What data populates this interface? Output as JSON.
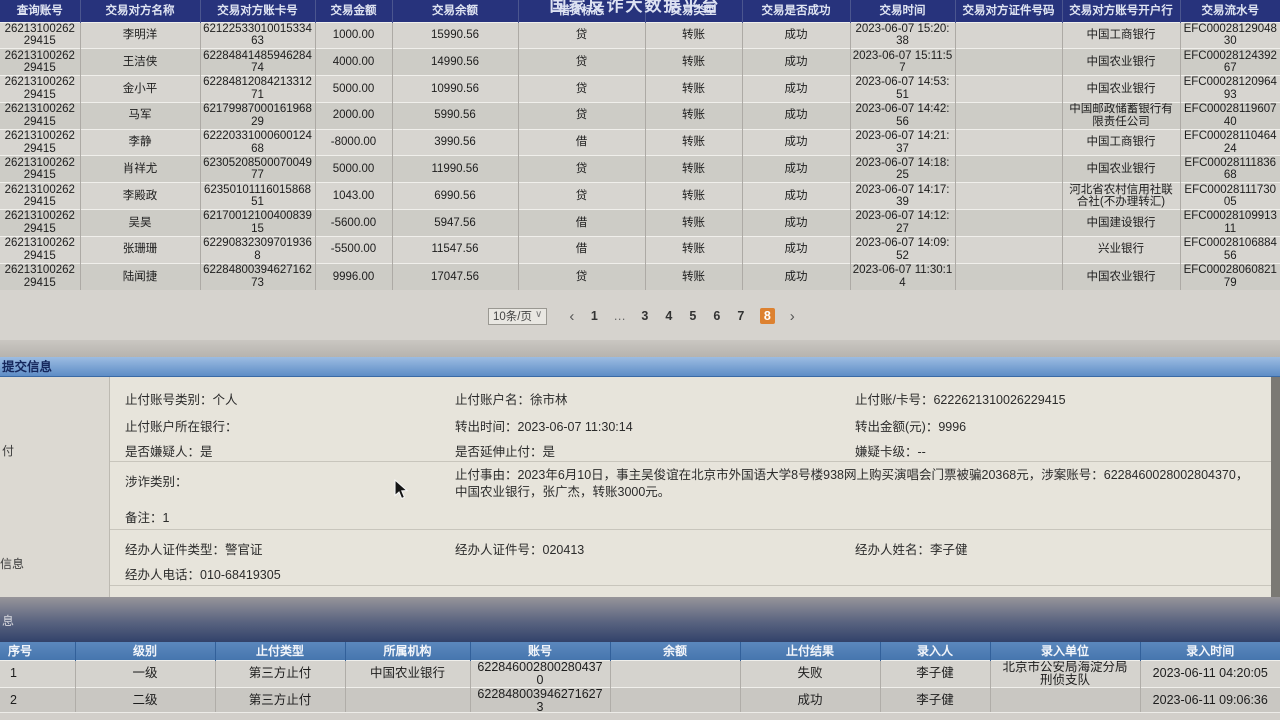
{
  "platform_title": "国家反诈大数据平台",
  "colors": {
    "header_navy": "#27337c",
    "header_blue": "#4e7db6",
    "active_page_orange": "#dd8130",
    "submit_bar_blue": "#6a9bd2"
  },
  "transactions": {
    "columns": [
      "查询账号",
      "交易对方名称",
      "交易对方账卡号",
      "交易金额",
      "交易余额",
      "借贷标志",
      "交易类型",
      "交易是否成功",
      "交易时间",
      "交易对方证件号码",
      "交易对方账号开户行",
      "交易流水号"
    ],
    "rows": [
      [
        "2621310026229415",
        "李明洋",
        "6212253301001533463",
        "1000.00",
        "15990.56",
        "贷",
        "转账",
        "成功",
        "2023-06-07 15:20:38",
        "",
        "中国工商银行",
        "EFC0002812904830"
      ],
      [
        "2621310026229415",
        "王洁侠",
        "6228484148594628474",
        "4000.00",
        "14990.56",
        "贷",
        "转账",
        "成功",
        "2023-06-07 15:11:57",
        "",
        "中国农业银行",
        "EFC0002812439267"
      ],
      [
        "2621310026229415",
        "金小平",
        "6228481208421331271",
        "5000.00",
        "10990.56",
        "贷",
        "转账",
        "成功",
        "2023-06-07 14:53:51",
        "",
        "中国农业银行",
        "EFC0002812096493"
      ],
      [
        "2621310026229415",
        "马军",
        "6217998700016196829",
        "2000.00",
        "5990.56",
        "贷",
        "转账",
        "成功",
        "2023-06-07 14:42:56",
        "",
        "中国邮政储蓄银行有限责任公司",
        "EFC0002811960740"
      ],
      [
        "2621310026229415",
        "李静",
        "6222033100060012468",
        "-8000.00",
        "3990.56",
        "借",
        "转账",
        "成功",
        "2023-06-07 14:21:37",
        "",
        "中国工商银行",
        "EFC0002811046424"
      ],
      [
        "2621310026229415",
        "肖祥尤",
        "6230520850007004977",
        "5000.00",
        "11990.56",
        "贷",
        "转账",
        "成功",
        "2023-06-07 14:18:25",
        "",
        "中国农业银行",
        "EFC0002811183668"
      ],
      [
        "2621310026229415",
        "李殿政",
        "6235010111601586851",
        "1043.00",
        "6990.56",
        "贷",
        "转账",
        "成功",
        "2023-06-07 14:17:39",
        "",
        "河北省农村信用社联合社(不办理转汇)",
        "EFC0002811173005"
      ],
      [
        "2621310026229415",
        "吴昊",
        "6217001210040083915",
        "-5600.00",
        "5947.56",
        "借",
        "转账",
        "成功",
        "2023-06-07 14:12:27",
        "",
        "中国建设银行",
        "EFC0002810991311"
      ],
      [
        "2621310026229415",
        "张珊珊",
        "622908323097019368",
        "-5500.00",
        "11547.56",
        "借",
        "转账",
        "成功",
        "2023-06-07 14:09:52",
        "",
        "兴业银行",
        "EFC0002810688456"
      ],
      [
        "2621310026229415",
        "陆闻捷",
        "6228480039462716273",
        "9996.00",
        "17047.56",
        "贷",
        "转账",
        "成功",
        "2023-06-07 11:30:14",
        "",
        "中国农业银行",
        "EFC0002806082179"
      ]
    ]
  },
  "pagination": {
    "page_size": "10条/页",
    "prev": "‹",
    "next": "›",
    "pages": [
      "1",
      "…",
      "3",
      "4",
      "5",
      "6",
      "7",
      "8"
    ],
    "active": "8"
  },
  "sidebar_fragments": {
    "stop_pay": "付",
    "info": "信息",
    "bottom": "息"
  },
  "submit_info": {
    "title": "提交信息",
    "fields": {
      "account_category": {
        "label": "止付账号类别：",
        "value": "个人"
      },
      "account_name": {
        "label": "止付账户名：",
        "value": "徐市林"
      },
      "card_no": {
        "label": "止付账/卡号：",
        "value": "6222621310026229415"
      },
      "bank": {
        "label": "止付账户所在银行：",
        "value": ""
      },
      "transfer_time": {
        "label": "转出时间：",
        "value": "2023-06-07 11:30:14"
      },
      "transfer_amount": {
        "label": "转出金额(元)：",
        "value": "9996"
      },
      "is_suspect": {
        "label": "是否嫌疑人：",
        "value": "是"
      },
      "is_extended": {
        "label": "是否延伸止付：",
        "value": "是"
      },
      "suspect_card_level": {
        "label": "嫌疑卡级：",
        "value": "--"
      },
      "fraud_category": {
        "label": "涉诈类别：",
        "value": ""
      },
      "stop_reason": {
        "label": "止付事由：",
        "value": "2023年6月10日，事主吴俊谊在北京市外国语大学8号楼938网上购买演唱会门票被骗20368元，涉案账号：6228460028002804370，中国农业银行，张广杰，转账3000元。"
      },
      "remark": {
        "label": "备注：",
        "value": "1"
      },
      "officer_id_type": {
        "label": "经办人证件类型：",
        "value": "警官证"
      },
      "officer_id_no": {
        "label": "经办人证件号：",
        "value": "020413"
      },
      "officer_name": {
        "label": "经办人姓名：",
        "value": "李子健"
      },
      "officer_phone": {
        "label": "经办人电话：",
        "value": "010-68419305"
      }
    }
  },
  "stop_payments": {
    "columns": [
      "序号",
      "级别",
      "止付类型",
      "所属机构",
      "账号",
      "余额",
      "止付结果",
      "录入人",
      "录入单位",
      "录入时间"
    ],
    "rows": [
      [
        "1",
        "一级",
        "第三方止付",
        "中国农业银行",
        "6228460028002804370",
        "",
        "失败",
        "李子健",
        "北京市公安局海淀分局刑侦支队",
        "2023-06-11 04:20:05"
      ],
      [
        "2",
        "二级",
        "第三方止付",
        "",
        "6228480039462716273",
        "",
        "成功",
        "李子健",
        "",
        "2023-06-11 09:06:36"
      ]
    ]
  }
}
